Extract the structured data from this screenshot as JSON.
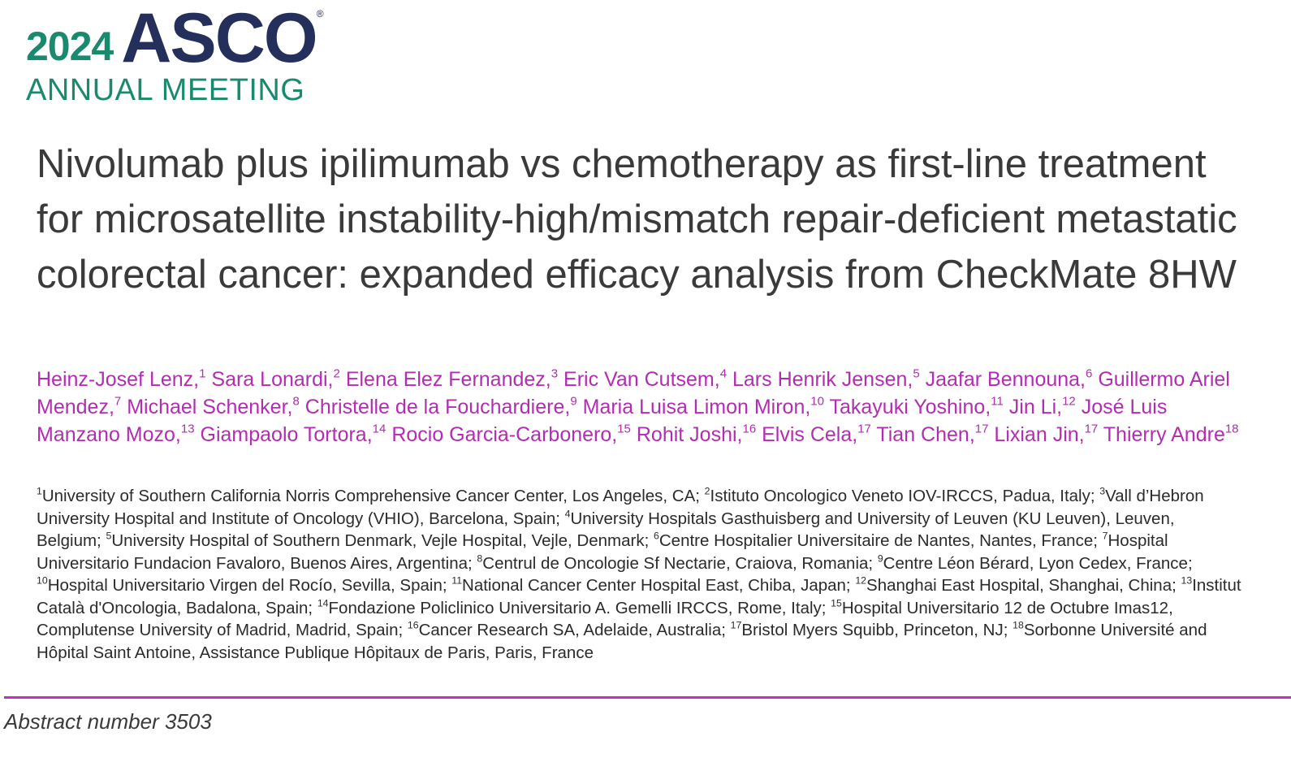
{
  "logo": {
    "year": "2024",
    "name": "ASCO",
    "mark": "®",
    "subtitle": "ANNUAL MEETING"
  },
  "title": "Nivolumab plus ipilimumab vs chemotherapy as first-line treatment for microsatellite instability-high/mismatch repair-deficient metastatic colorectal cancer: expanded efficacy analysis from CheckMate 8HW",
  "authors": [
    {
      "name": "Heinz-Josef Lenz,",
      "sup": "1"
    },
    {
      "name": "Sara Lonardi,",
      "sup": "2"
    },
    {
      "name": "Elena Elez Fernandez,",
      "sup": "3"
    },
    {
      "name": "Eric Van Cutsem,",
      "sup": "4"
    },
    {
      "name": "Lars Henrik Jensen,",
      "sup": "5"
    },
    {
      "name": "Jaafar Bennouna,",
      "sup": "6"
    },
    {
      "name": "Guillermo Ariel Mendez,",
      "sup": "7"
    },
    {
      "name": "Michael Schenker,",
      "sup": "8"
    },
    {
      "name": "Christelle de la Fouchardiere,",
      "sup": "9"
    },
    {
      "name": "Maria Luisa Limon Miron,",
      "sup": "10"
    },
    {
      "name": "Takayuki Yoshino,",
      "sup": "11"
    },
    {
      "name": "Jin Li,",
      "sup": "12"
    },
    {
      "name": "José Luis Manzano Mozo,",
      "sup": "13"
    },
    {
      "name": "Giampaolo Tortora,",
      "sup": "14"
    },
    {
      "name": "Rocio Garcia-Carbonero,",
      "sup": "15"
    },
    {
      "name": "Rohit Joshi,",
      "sup": "16"
    },
    {
      "name": "Elvis Cela,",
      "sup": "17"
    },
    {
      "name": "Tian Chen,",
      "sup": "17"
    },
    {
      "name": "Lixian Jin,",
      "sup": "17"
    },
    {
      "name": "Thierry Andre",
      "sup": "18"
    }
  ],
  "affiliations": [
    {
      "sup": "1",
      "text": "University of Southern California Norris Comprehensive Cancer Center, Los Angeles, CA;"
    },
    {
      "sup": "2",
      "text": "Istituto Oncologico Veneto IOV-IRCCS, Padua, Italy;"
    },
    {
      "sup": "3",
      "text": "Vall d’Hebron University Hospital and Institute of Oncology (VHIO), Barcelona, Spain;"
    },
    {
      "sup": "4",
      "text": "University Hospitals Gasthuisberg and University of Leuven (KU Leuven), Leuven, Belgium;"
    },
    {
      "sup": "5",
      "text": "University Hospital of Southern Denmark, Vejle Hospital, Vejle, Denmark;"
    },
    {
      "sup": "6",
      "text": "Centre Hospitalier Universitaire de Nantes, Nantes, France;"
    },
    {
      "sup": "7",
      "text": "Hospital Universitario Fundacion Favaloro, Buenos Aires, Argentina;"
    },
    {
      "sup": "8",
      "text": "Centrul de Oncologie Sf Nectarie, Craiova, Romania;"
    },
    {
      "sup": "9",
      "text": "Centre Léon Bérard, Lyon Cedex, France;"
    },
    {
      "sup": "10",
      "text": "Hospital Universitario Virgen del Rocío, Sevilla, Spain;"
    },
    {
      "sup": "11",
      "text": "National Cancer Center Hospital East, Chiba, Japan;"
    },
    {
      "sup": "12",
      "text": "Shanghai East Hospital, Shanghai, China;"
    },
    {
      "sup": "13",
      "text": "Institut Català d'Oncologia, Badalona, Spain;"
    },
    {
      "sup": "14",
      "text": "Fondazione Policlinico Universitario A. Gemelli IRCCS, Rome, Italy;"
    },
    {
      "sup": "15",
      "text": "Hospital Universitario 12 de Octubre Imas12, Complutense University of Madrid, Madrid, Spain;"
    },
    {
      "sup": "16",
      "text": "Cancer Research SA, Adelaide, Australia;"
    },
    {
      "sup": "17",
      "text": "Bristol Myers Squibb, Princeton, NJ;"
    },
    {
      "sup": "18",
      "text": "Sorbonne Université and Hôpital Saint Antoine, Assistance Publique Hôpitaux de Paris, Paris, France"
    }
  ],
  "abstract_number": "Abstract number 3503"
}
